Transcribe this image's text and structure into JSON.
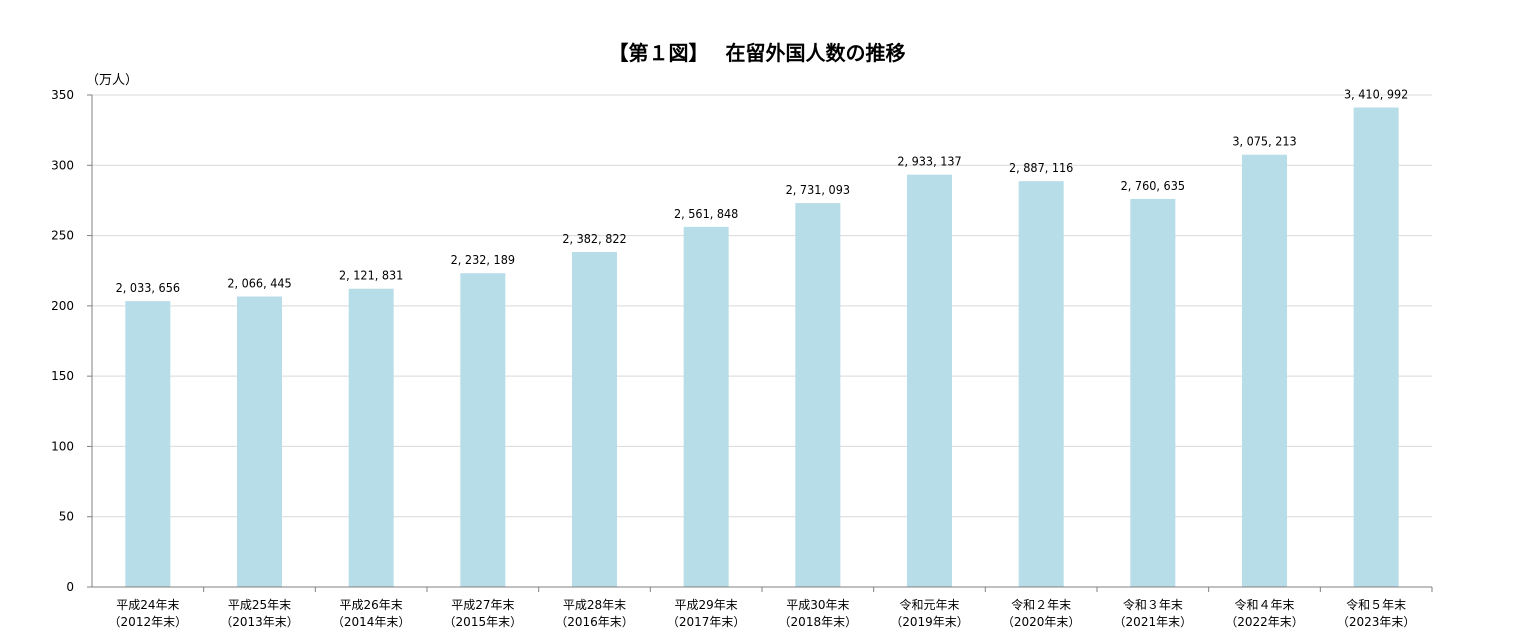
{
  "chart_data": {
    "type": "bar",
    "title": "【第１図】　 在留外国人数の推移",
    "ylabel": "（万人）",
    "ylim": [
      0,
      350
    ],
    "yticks": [
      0,
      50,
      100,
      150,
      200,
      250,
      300,
      350
    ],
    "grid": true,
    "bar_color": "#b7dde8",
    "categories": [
      [
        "平成24年末",
        "（2012年末）"
      ],
      [
        "平成25年末",
        "（2013年末）"
      ],
      [
        "平成26年末",
        "（2014年末）"
      ],
      [
        "平成27年末",
        "（2015年末）"
      ],
      [
        "平成28年末",
        "（2016年末）"
      ],
      [
        "平成29年末",
        "（2017年末）"
      ],
      [
        "平成30年末",
        "（2018年末）"
      ],
      [
        "令和元年末",
        "（2019年末）"
      ],
      [
        "令和２年末",
        "（2020年末）"
      ],
      [
        "令和３年末",
        "（2021年末）"
      ],
      [
        "令和４年末",
        "（2022年末）"
      ],
      [
        "令和５年末",
        "（2023年末）"
      ]
    ],
    "values": [
      2033656,
      2066445,
      2121831,
      2232189,
      2382822,
      2561848,
      2731093,
      2933137,
      2887116,
      2760635,
      3075213,
      3410992
    ],
    "value_labels": [
      "2, 033, 656",
      "2, 066, 445",
      "2, 121, 831",
      "2, 232, 189",
      "2, 382, 822",
      "2, 561, 848",
      "2, 731, 093",
      "2, 933, 137",
      "2, 887, 116",
      "2, 760, 635",
      "3, 075, 213",
      "3, 410, 992"
    ]
  }
}
